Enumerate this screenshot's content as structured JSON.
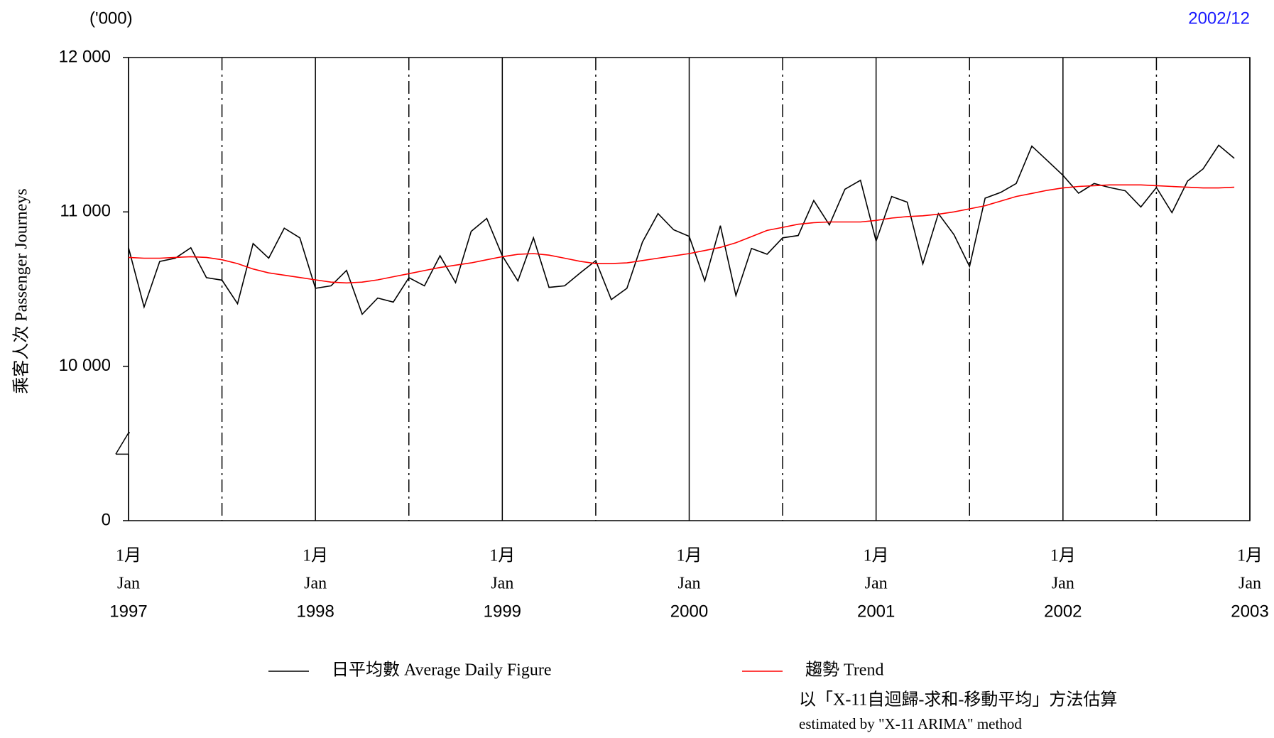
{
  "chart_data": {
    "type": "line",
    "unit_note": "('000)",
    "date_note": "2002/12",
    "ylabel": "乘客人次 Passenger Journeys",
    "x": [
      "1997-01",
      "1997-02",
      "1997-03",
      "1997-04",
      "1997-05",
      "1997-06",
      "1997-07",
      "1997-08",
      "1997-09",
      "1997-10",
      "1997-11",
      "1997-12",
      "1998-01",
      "1998-02",
      "1998-03",
      "1998-04",
      "1998-05",
      "1998-06",
      "1998-07",
      "1998-08",
      "1998-09",
      "1998-10",
      "1998-11",
      "1998-12",
      "1999-01",
      "1999-02",
      "1999-03",
      "1999-04",
      "1999-05",
      "1999-06",
      "1999-07",
      "1999-08",
      "1999-09",
      "1999-10",
      "1999-11",
      "1999-12",
      "2000-01",
      "2000-02",
      "2000-03",
      "2000-04",
      "2000-05",
      "2000-06",
      "2000-07",
      "2000-08",
      "2000-09",
      "2000-10",
      "2000-11",
      "2000-12",
      "2001-01",
      "2001-02",
      "2001-03",
      "2001-04",
      "2001-05",
      "2001-06",
      "2001-07",
      "2001-08",
      "2001-09",
      "2001-10",
      "2001-11",
      "2001-12",
      "2002-01",
      "2002-02",
      "2002-03",
      "2002-04",
      "2002-05",
      "2002-06",
      "2002-07",
      "2002-08",
      "2002-09",
      "2002-10",
      "2002-11",
      "2002-12"
    ],
    "series": [
      {
        "name": "日平均數 Average Daily Figure",
        "color": "#000000",
        "values": [
          10768,
          10384,
          10679,
          10700,
          10768,
          10574,
          10558,
          10405,
          10795,
          10700,
          10895,
          10832,
          10505,
          10521,
          10621,
          10337,
          10442,
          10416,
          10574,
          10521,
          10716,
          10542,
          10874,
          10958,
          10716,
          10553,
          10832,
          10511,
          10521,
          10605,
          10684,
          10432,
          10505,
          10805,
          10989,
          10884,
          10842,
          10553,
          10911,
          10458,
          10763,
          10726,
          10832,
          10847,
          11074,
          10916,
          11147,
          11205,
          10811,
          11100,
          11063,
          10663,
          10989,
          10853,
          10647,
          11089,
          11126,
          11184,
          11426,
          11332,
          11237,
          11121,
          11184,
          11158,
          11137,
          11032,
          11158,
          10995,
          11200,
          11279,
          11432,
          11347
        ]
      },
      {
        "name": "趨勢 Trend",
        "color": "#ff0000",
        "values": [
          10705,
          10700,
          10700,
          10705,
          10710,
          10705,
          10690,
          10665,
          10630,
          10605,
          10590,
          10575,
          10560,
          10545,
          10540,
          10545,
          10560,
          10580,
          10600,
          10620,
          10640,
          10655,
          10670,
          10690,
          10710,
          10725,
          10730,
          10720,
          10700,
          10680,
          10665,
          10665,
          10670,
          10685,
          10700,
          10715,
          10730,
          10750,
          10770,
          10800,
          10840,
          10880,
          10900,
          10920,
          10930,
          10935,
          10935,
          10935,
          10945,
          10960,
          10970,
          10975,
          10985,
          11000,
          11020,
          11040,
          11070,
          11100,
          11120,
          11140,
          11155,
          11165,
          11170,
          11175,
          11175,
          11175,
          11170,
          11165,
          11160,
          11155,
          11155,
          11160
        ]
      }
    ],
    "ylim": [
      0,
      12000
    ],
    "y_break": [
      0,
      10000
    ],
    "yticks": [
      0,
      {
        "value": 10000,
        "label": "10 000"
      },
      {
        "value": 11000,
        "label": "11 000"
      },
      {
        "value": 12000,
        "label": "12 000"
      }
    ],
    "xlim": [
      "1997-01",
      "2003-01"
    ],
    "xticks": [
      {
        "value": "1997-01",
        "label": [
          "1月",
          "Jan",
          "1997"
        ]
      },
      {
        "value": "1998-01",
        "label": [
          "1月",
          "Jan",
          "1998"
        ]
      },
      {
        "value": "1999-01",
        "label": [
          "1月",
          "Jan",
          "1999"
        ]
      },
      {
        "value": "2000-01",
        "label": [
          "1月",
          "Jan",
          "2000"
        ]
      },
      {
        "value": "2001-01",
        "label": [
          "1月",
          "Jan",
          "2001"
        ]
      },
      {
        "value": "2002-01",
        "label": [
          "1月",
          "Jan",
          "2002"
        ]
      },
      {
        "value": "2003-01",
        "label": [
          "1月",
          "Jan",
          "2003"
        ]
      }
    ],
    "xminor": [
      "1997-07",
      "1998-07",
      "1999-07",
      "2000-07",
      "2001-07",
      "2002-07"
    ],
    "grid": true,
    "note": [
      "以「X-11自迴歸-求和-移動平均」方法估算",
      "estimated by \"X-11 ARIMA\" method"
    ]
  }
}
